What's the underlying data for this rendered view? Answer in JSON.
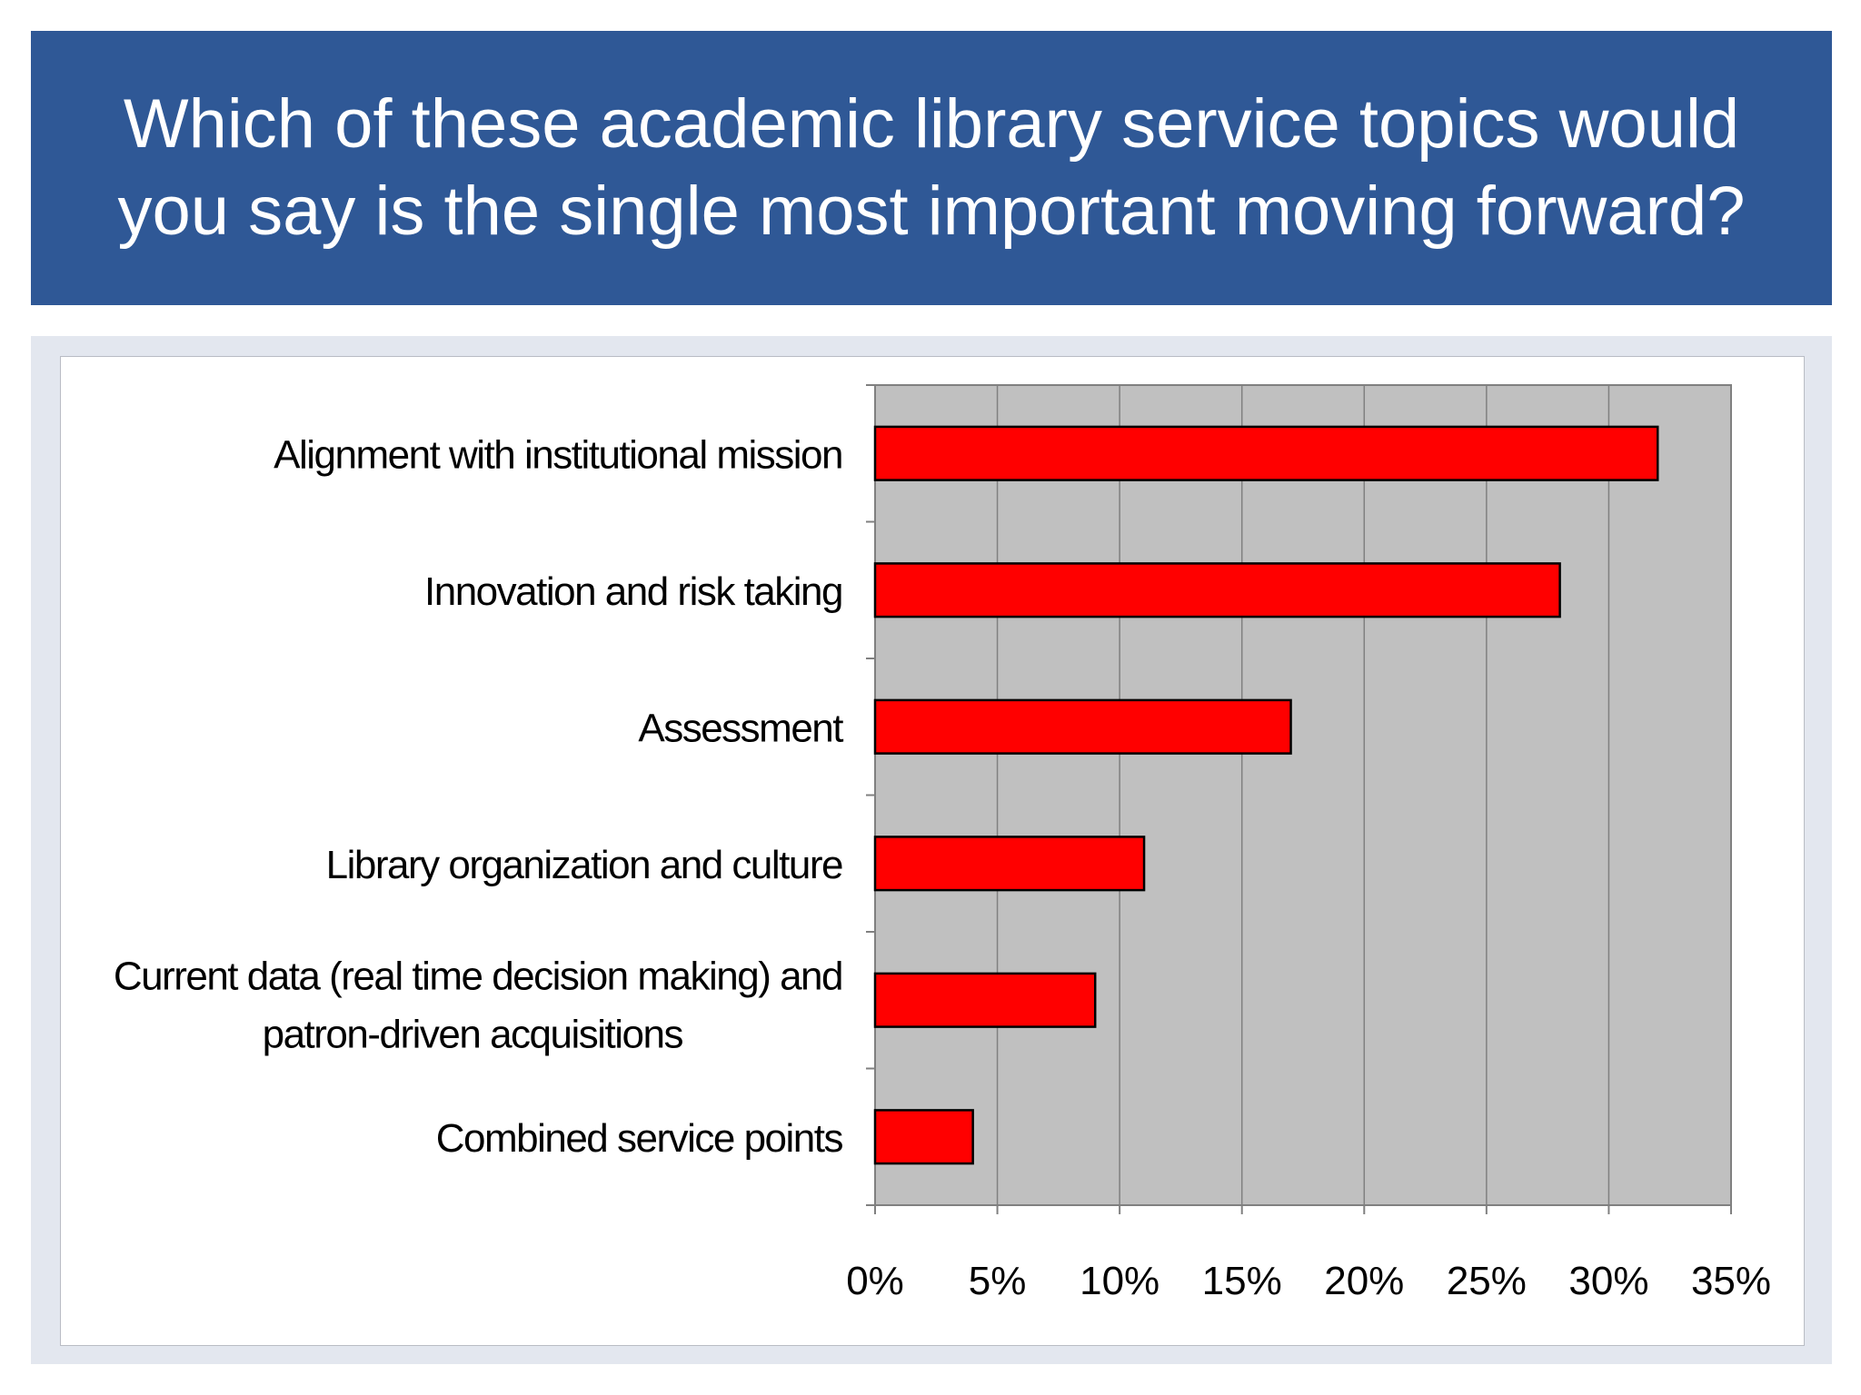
{
  "slide": {
    "title": "Which of these academic library service topics would you say is the single most important moving forward?"
  },
  "colors": {
    "banner": "#2f5896",
    "bar_fill": "#ff0000",
    "plot_background": "#c0c0c0"
  },
  "chart_data": {
    "type": "bar",
    "orientation": "horizontal",
    "categories": [
      [
        "Alignment with institutional mission"
      ],
      [
        "Innovation and risk taking"
      ],
      [
        "Assessment"
      ],
      [
        "Library organization and culture"
      ],
      [
        "Current data (real time decision making) and",
        "patron-driven acquisitions"
      ],
      [
        "Combined service points"
      ]
    ],
    "values": [
      32,
      28,
      17,
      11,
      9,
      4
    ],
    "unit": "%",
    "xlim": [
      0,
      35
    ],
    "xticks": [
      0,
      5,
      10,
      15,
      20,
      25,
      30,
      35
    ],
    "xtick_labels": [
      "0%",
      "5%",
      "10%",
      "15%",
      "20%",
      "25%",
      "30%",
      "35%"
    ],
    "grid": "vertical",
    "legend": "none"
  }
}
